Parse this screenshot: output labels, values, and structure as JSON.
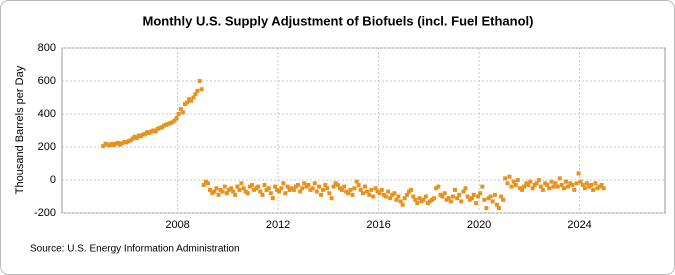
{
  "chart_data": {
    "type": "scatter",
    "title": "Monthly U.S. Supply Adjustment of Biofuels (incl. Fuel Ethanol)",
    "ylabel": "Thousand Barrels per Day",
    "source": "Source: U.S. Energy Information Administration",
    "color": "#e8921e",
    "grid": true,
    "xlim": [
      2003.4,
      2027.4
    ],
    "xticks": [
      2008,
      2012,
      2016,
      2020,
      2024
    ],
    "ylim": [
      -200,
      800
    ],
    "yticks": [
      -200,
      0,
      200,
      400,
      600,
      800
    ],
    "x": [
      2005.04,
      2005.13,
      2005.21,
      2005.29,
      2005.38,
      2005.46,
      2005.54,
      2005.63,
      2005.71,
      2005.79,
      2005.88,
      2005.96,
      2006.04,
      2006.13,
      2006.21,
      2006.29,
      2006.38,
      2006.46,
      2006.54,
      2006.63,
      2006.71,
      2006.79,
      2006.88,
      2006.96,
      2007.04,
      2007.13,
      2007.21,
      2007.29,
      2007.38,
      2007.46,
      2007.54,
      2007.63,
      2007.71,
      2007.79,
      2007.88,
      2007.96,
      2008.04,
      2008.13,
      2008.21,
      2008.29,
      2008.38,
      2008.46,
      2008.54,
      2008.63,
      2008.71,
      2008.79,
      2008.88,
      2008.96,
      2009.04,
      2009.13,
      2009.21,
      2009.29,
      2009.38,
      2009.46,
      2009.54,
      2009.63,
      2009.71,
      2009.79,
      2009.88,
      2009.96,
      2010.04,
      2010.13,
      2010.21,
      2010.29,
      2010.38,
      2010.46,
      2010.54,
      2010.63,
      2010.71,
      2010.79,
      2010.88,
      2010.96,
      2011.04,
      2011.13,
      2011.21,
      2011.29,
      2011.38,
      2011.46,
      2011.54,
      2011.63,
      2011.71,
      2011.79,
      2011.88,
      2011.96,
      2012.04,
      2012.13,
      2012.21,
      2012.29,
      2012.38,
      2012.46,
      2012.54,
      2012.63,
      2012.71,
      2012.79,
      2012.88,
      2012.96,
      2013.04,
      2013.13,
      2013.21,
      2013.29,
      2013.38,
      2013.46,
      2013.54,
      2013.63,
      2013.71,
      2013.79,
      2013.88,
      2013.96,
      2014.04,
      2014.13,
      2014.21,
      2014.29,
      2014.38,
      2014.46,
      2014.54,
      2014.63,
      2014.71,
      2014.79,
      2014.88,
      2014.96,
      2015.04,
      2015.13,
      2015.21,
      2015.29,
      2015.38,
      2015.46,
      2015.54,
      2015.63,
      2015.71,
      2015.79,
      2015.88,
      2015.96,
      2016.04,
      2016.13,
      2016.21,
      2016.29,
      2016.38,
      2016.46,
      2016.54,
      2016.63,
      2016.71,
      2016.79,
      2016.88,
      2016.96,
      2017.04,
      2017.13,
      2017.21,
      2017.29,
      2017.38,
      2017.46,
      2017.54,
      2017.63,
      2017.71,
      2017.79,
      2017.88,
      2017.96,
      2018.04,
      2018.13,
      2018.21,
      2018.29,
      2018.38,
      2018.46,
      2018.54,
      2018.63,
      2018.71,
      2018.79,
      2018.88,
      2018.96,
      2019.04,
      2019.13,
      2019.21,
      2019.29,
      2019.38,
      2019.46,
      2019.54,
      2019.63,
      2019.71,
      2019.79,
      2019.88,
      2019.96,
      2020.04,
      2020.13,
      2020.21,
      2020.29,
      2020.38,
      2020.46,
      2020.54,
      2020.63,
      2020.71,
      2020.79,
      2020.88,
      2020.96,
      2021.04,
      2021.13,
      2021.21,
      2021.29,
      2021.38,
      2021.46,
      2021.54,
      2021.63,
      2021.71,
      2021.79,
      2021.88,
      2021.96,
      2022.04,
      2022.13,
      2022.21,
      2022.29,
      2022.38,
      2022.46,
      2022.54,
      2022.63,
      2022.71,
      2022.79,
      2022.88,
      2022.96,
      2023.04,
      2023.13,
      2023.21,
      2023.29,
      2023.38,
      2023.46,
      2023.54,
      2023.63,
      2023.71,
      2023.79,
      2023.88,
      2023.96,
      2024.04,
      2024.13,
      2024.21,
      2024.29,
      2024.38,
      2024.46,
      2024.54,
      2024.63,
      2024.71,
      2024.79,
      2024.88,
      2024.96
    ],
    "values": [
      205,
      220,
      215,
      210,
      218,
      212,
      220,
      225,
      215,
      222,
      230,
      228,
      235,
      240,
      250,
      262,
      255,
      270,
      265,
      275,
      280,
      290,
      285,
      295,
      300,
      295,
      310,
      315,
      320,
      330,
      335,
      340,
      345,
      350,
      360,
      375,
      400,
      430,
      410,
      460,
      470,
      490,
      480,
      500,
      520,
      540,
      600,
      550,
      -30,
      -10,
      -20,
      -60,
      -80,
      -70,
      -50,
      -90,
      -60,
      -70,
      -40,
      -80,
      -60,
      -50,
      -70,
      -90,
      -40,
      -60,
      -20,
      -50,
      -70,
      -80,
      -40,
      -30,
      -60,
      -50,
      -40,
      -70,
      -90,
      -30,
      -60,
      -50,
      -80,
      -110,
      -40,
      -60,
      -70,
      -50,
      -20,
      -80,
      -40,
      -60,
      -50,
      -60,
      -40,
      -30,
      -70,
      -50,
      -20,
      -40,
      -30,
      -60,
      -50,
      -20,
      -70,
      -40,
      -90,
      -60,
      -30,
      -50,
      -80,
      -110,
      -40,
      -20,
      -30,
      -50,
      -60,
      -40,
      -70,
      -80,
      -60,
      -90,
      -50,
      -10,
      -30,
      -60,
      -80,
      -40,
      -70,
      -90,
      -60,
      -100,
      -50,
      -70,
      -80,
      -60,
      -90,
      -100,
      -70,
      -110,
      -90,
      -80,
      -120,
      -100,
      -130,
      -150,
      -110,
      -90,
      -70,
      -60,
      -100,
      -120,
      -140,
      -110,
      -130,
      -120,
      -100,
      -140,
      -130,
      -120,
      -110,
      -50,
      -40,
      -90,
      -100,
      -80,
      -120,
      -110,
      -130,
      -100,
      -60,
      -110,
      -90,
      -130,
      -70,
      -50,
      -100,
      -120,
      -110,
      -90,
      -140,
      -100,
      -80,
      -40,
      -120,
      -170,
      -110,
      -100,
      -130,
      -90,
      -150,
      -170,
      -100,
      -120,
      10,
      -20,
      20,
      -40,
      -10,
      -30,
      0,
      -50,
      -60,
      -40,
      -20,
      -30,
      -10,
      -50,
      -30,
      -20,
      0,
      -40,
      -60,
      -20,
      -30,
      -50,
      -10,
      -40,
      -20,
      -40,
      10,
      -30,
      -50,
      -10,
      -40,
      -20,
      -30,
      -60,
      -20,
      40,
      -10,
      -30,
      -50,
      -20,
      -40,
      -30,
      -60,
      -20,
      -50,
      -40,
      -30,
      -50
    ]
  }
}
